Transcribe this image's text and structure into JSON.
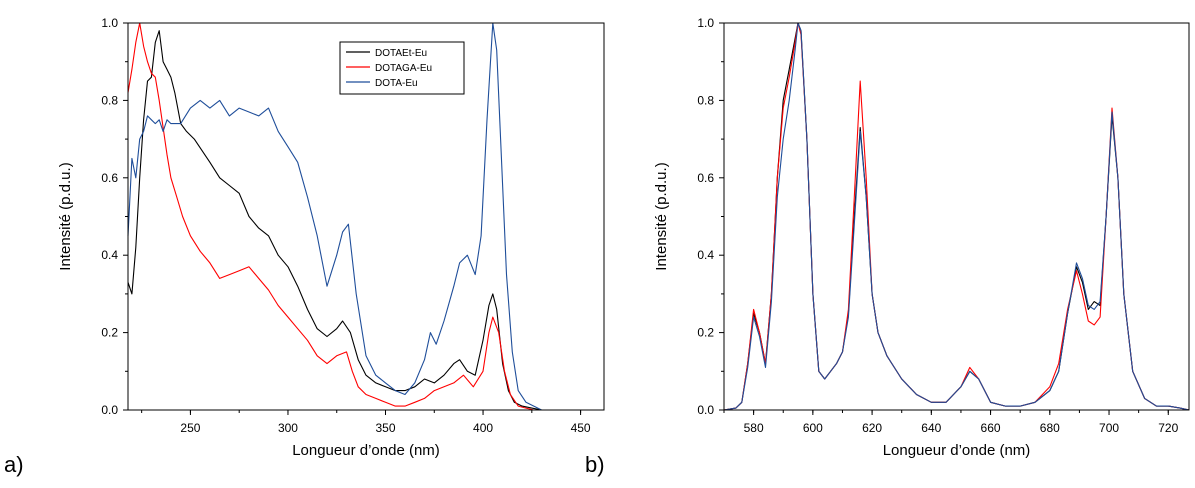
{
  "panel_labels": [
    "a)",
    "b)"
  ],
  "chart_data": [
    {
      "type": "line",
      "xlabel": "Longueur d’onde (nm)",
      "ylabel": "Intensité (p.d.u.)",
      "xlim": [
        218,
        462
      ],
      "ylim": [
        0,
        1.0
      ],
      "xticks": [
        "250",
        "300",
        "350",
        "400",
        "450"
      ],
      "yticks": [
        "0.0",
        "0.2",
        "0.4",
        "0.6",
        "0.8",
        "1.0"
      ],
      "grid": false,
      "legend": "top-center",
      "series": [
        {
          "name": "DOTAEt-Eu",
          "color": "#000000",
          "x": [
            218,
            220,
            222,
            224,
            226,
            228,
            230,
            232,
            234,
            236,
            238,
            240,
            242,
            245,
            248,
            252,
            256,
            260,
            265,
            270,
            275,
            280,
            285,
            290,
            295,
            300,
            305,
            310,
            315,
            320,
            325,
            328,
            332,
            336,
            340,
            345,
            350,
            355,
            360,
            365,
            370,
            375,
            380,
            385,
            388,
            392,
            396,
            400,
            403,
            405,
            407,
            410,
            413,
            416,
            420,
            425,
            430
          ],
          "y": [
            0.33,
            0.3,
            0.42,
            0.6,
            0.75,
            0.85,
            0.86,
            0.95,
            0.98,
            0.9,
            0.88,
            0.86,
            0.82,
            0.74,
            0.72,
            0.7,
            0.67,
            0.64,
            0.6,
            0.58,
            0.56,
            0.5,
            0.47,
            0.45,
            0.4,
            0.37,
            0.32,
            0.26,
            0.21,
            0.19,
            0.21,
            0.23,
            0.2,
            0.13,
            0.09,
            0.07,
            0.06,
            0.05,
            0.05,
            0.06,
            0.08,
            0.07,
            0.09,
            0.12,
            0.13,
            0.1,
            0.09,
            0.18,
            0.27,
            0.3,
            0.26,
            0.12,
            0.05,
            0.02,
            0.01,
            0.005,
            0.0
          ]
        },
        {
          "name": "DOTAGA-Eu",
          "color": "#ff0000",
          "x": [
            218,
            220,
            222,
            224,
            226,
            228,
            230,
            232,
            234,
            236,
            238,
            240,
            243,
            246,
            250,
            255,
            260,
            265,
            270,
            275,
            280,
            285,
            290,
            295,
            300,
            305,
            310,
            315,
            320,
            325,
            330,
            333,
            336,
            340,
            345,
            350,
            355,
            360,
            365,
            370,
            375,
            380,
            385,
            390,
            395,
            400,
            403,
            405,
            408,
            411,
            414,
            418,
            422,
            426,
            430
          ],
          "y": [
            0.82,
            0.88,
            0.95,
            1.0,
            0.94,
            0.9,
            0.87,
            0.86,
            0.8,
            0.73,
            0.66,
            0.6,
            0.55,
            0.5,
            0.45,
            0.41,
            0.38,
            0.34,
            0.35,
            0.36,
            0.37,
            0.34,
            0.31,
            0.27,
            0.24,
            0.21,
            0.18,
            0.14,
            0.12,
            0.14,
            0.15,
            0.1,
            0.06,
            0.04,
            0.03,
            0.02,
            0.01,
            0.01,
            0.02,
            0.03,
            0.05,
            0.06,
            0.07,
            0.09,
            0.06,
            0.1,
            0.2,
            0.24,
            0.2,
            0.1,
            0.04,
            0.01,
            0.005,
            0.0,
            0.0
          ]
        },
        {
          "name": "DOTA-Eu",
          "color": "#1f4e9a",
          "x": [
            218,
            220,
            222,
            224,
            226,
            228,
            230,
            232,
            234,
            236,
            238,
            240,
            245,
            250,
            255,
            260,
            265,
            270,
            275,
            280,
            285,
            290,
            295,
            300,
            305,
            310,
            315,
            320,
            325,
            328,
            331,
            335,
            340,
            345,
            350,
            355,
            360,
            365,
            370,
            373,
            376,
            380,
            385,
            388,
            392,
            396,
            399,
            402,
            405,
            407,
            409,
            412,
            415,
            418,
            422,
            426,
            430
          ],
          "y": [
            0.45,
            0.65,
            0.6,
            0.7,
            0.72,
            0.76,
            0.75,
            0.74,
            0.75,
            0.72,
            0.75,
            0.74,
            0.74,
            0.78,
            0.8,
            0.78,
            0.8,
            0.76,
            0.78,
            0.77,
            0.76,
            0.78,
            0.72,
            0.68,
            0.64,
            0.55,
            0.45,
            0.32,
            0.4,
            0.46,
            0.48,
            0.3,
            0.14,
            0.09,
            0.07,
            0.05,
            0.04,
            0.07,
            0.13,
            0.2,
            0.17,
            0.23,
            0.32,
            0.38,
            0.4,
            0.35,
            0.45,
            0.75,
            1.0,
            0.93,
            0.7,
            0.35,
            0.15,
            0.05,
            0.02,
            0.01,
            0.0
          ]
        }
      ]
    },
    {
      "type": "line",
      "xlabel": "Longueur d’onde (nm)",
      "ylabel": "Intensité (p.d.u.)",
      "xlim": [
        570,
        727
      ],
      "ylim": [
        0,
        1.0
      ],
      "xticks": [
        "580",
        "600",
        "620",
        "640",
        "660",
        "680",
        "700",
        "720"
      ],
      "yticks": [
        "0.0",
        "0.2",
        "0.4",
        "0.6",
        "0.8",
        "1.0"
      ],
      "grid": false,
      "legend": "none",
      "series": [
        {
          "color": "#000000",
          "x": [
            570,
            574,
            576,
            578,
            580,
            582,
            584,
            586,
            588,
            590,
            592,
            594,
            595,
            596,
            598,
            600,
            602,
            604,
            606,
            608,
            610,
            612,
            614,
            616,
            618,
            620,
            622,
            625,
            630,
            635,
            640,
            645,
            650,
            653,
            656,
            660,
            665,
            670,
            675,
            680,
            683,
            686,
            689,
            691,
            693,
            695,
            697,
            699,
            701,
            703,
            705,
            708,
            712,
            716,
            720,
            724,
            727
          ],
          "y": [
            0.0,
            0.005,
            0.02,
            0.12,
            0.25,
            0.2,
            0.12,
            0.3,
            0.6,
            0.8,
            0.88,
            0.96,
            1.0,
            0.98,
            0.7,
            0.3,
            0.1,
            0.08,
            0.1,
            0.12,
            0.15,
            0.25,
            0.5,
            0.73,
            0.55,
            0.3,
            0.2,
            0.14,
            0.08,
            0.04,
            0.02,
            0.02,
            0.06,
            0.1,
            0.08,
            0.02,
            0.01,
            0.01,
            0.02,
            0.05,
            0.1,
            0.25,
            0.37,
            0.33,
            0.26,
            0.28,
            0.27,
            0.5,
            0.76,
            0.6,
            0.3,
            0.1,
            0.03,
            0.01,
            0.01,
            0.005,
            0.0
          ]
        },
        {
          "color": "#ff0000",
          "x": [
            570,
            574,
            576,
            578,
            580,
            582,
            584,
            586,
            588,
            590,
            592,
            594,
            595,
            596,
            598,
            600,
            602,
            604,
            606,
            608,
            610,
            612,
            614,
            616,
            618,
            620,
            622,
            625,
            630,
            635,
            640,
            645,
            650,
            653,
            656,
            660,
            665,
            670,
            675,
            680,
            683,
            686,
            689,
            691,
            693,
            695,
            697,
            699,
            701,
            703,
            705,
            708,
            712,
            716,
            720,
            724,
            727
          ],
          "y": [
            0.0,
            0.005,
            0.02,
            0.12,
            0.26,
            0.2,
            0.12,
            0.3,
            0.6,
            0.78,
            0.86,
            0.95,
            1.0,
            0.97,
            0.7,
            0.3,
            0.1,
            0.08,
            0.1,
            0.12,
            0.15,
            0.26,
            0.55,
            0.85,
            0.6,
            0.3,
            0.2,
            0.14,
            0.08,
            0.04,
            0.02,
            0.02,
            0.06,
            0.11,
            0.08,
            0.02,
            0.01,
            0.01,
            0.02,
            0.06,
            0.12,
            0.26,
            0.36,
            0.3,
            0.23,
            0.22,
            0.24,
            0.5,
            0.78,
            0.6,
            0.3,
            0.1,
            0.03,
            0.01,
            0.01,
            0.005,
            0.0
          ]
        },
        {
          "color": "#1f4e9a",
          "x": [
            570,
            574,
            576,
            578,
            580,
            582,
            584,
            586,
            588,
            590,
            592,
            594,
            595,
            596,
            598,
            600,
            602,
            604,
            606,
            608,
            610,
            612,
            614,
            616,
            618,
            620,
            622,
            625,
            630,
            635,
            640,
            645,
            650,
            653,
            656,
            660,
            665,
            670,
            675,
            680,
            683,
            686,
            689,
            691,
            693,
            695,
            697,
            699,
            701,
            703,
            705,
            708,
            712,
            716,
            720,
            724,
            727
          ],
          "y": [
            0.0,
            0.005,
            0.02,
            0.11,
            0.24,
            0.19,
            0.11,
            0.28,
            0.55,
            0.7,
            0.8,
            0.93,
            1.0,
            0.98,
            0.7,
            0.3,
            0.1,
            0.08,
            0.1,
            0.12,
            0.15,
            0.24,
            0.48,
            0.72,
            0.55,
            0.3,
            0.2,
            0.14,
            0.08,
            0.04,
            0.02,
            0.02,
            0.06,
            0.1,
            0.08,
            0.02,
            0.01,
            0.01,
            0.02,
            0.05,
            0.1,
            0.25,
            0.38,
            0.34,
            0.27,
            0.26,
            0.28,
            0.5,
            0.77,
            0.6,
            0.3,
            0.1,
            0.03,
            0.01,
            0.01,
            0.005,
            0.0
          ]
        }
      ]
    }
  ]
}
